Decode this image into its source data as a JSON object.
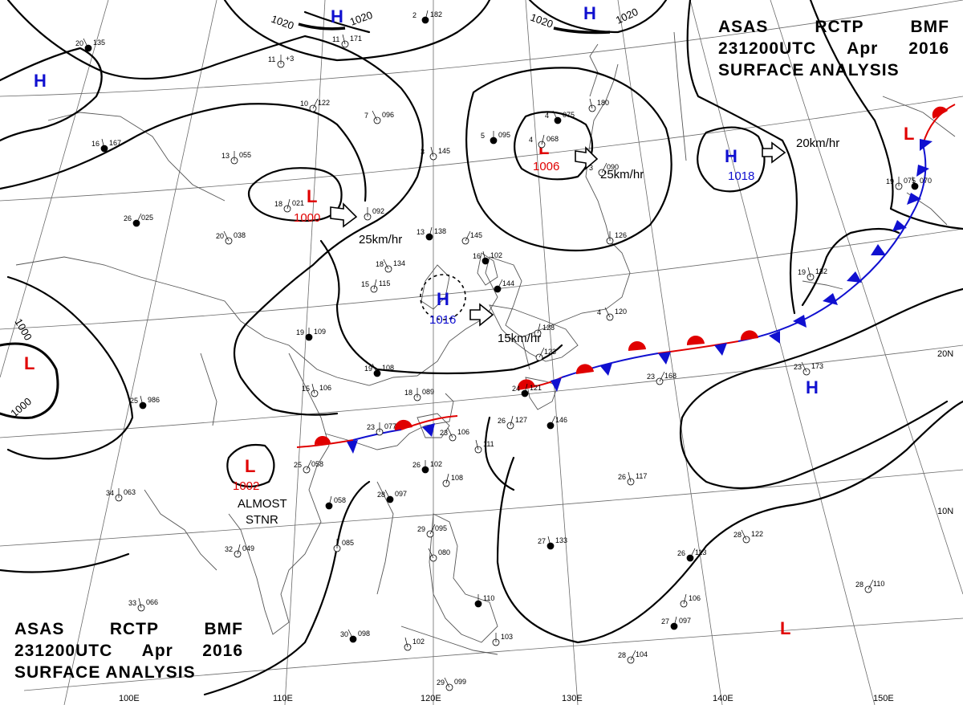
{
  "header": {
    "line1": [
      "ASAS",
      "RCTP",
      "BMF"
    ],
    "line2": [
      "231200UTC",
      "Apr",
      "2016"
    ],
    "line3": "SURFACE ANALYSIS"
  },
  "colors": {
    "high": "#1010d0",
    "low": "#e00000",
    "isobar": "#000000",
    "grid": "#555555",
    "coast": "#444444"
  },
  "pressure_centers": [
    {
      "type": "H",
      "value": "",
      "movement": ""
    },
    {
      "type": "H",
      "value": "",
      "movement": ""
    },
    {
      "type": "H",
      "value": "",
      "movement": ""
    },
    {
      "type": "L",
      "value": "1000",
      "movement": "25km/hr"
    },
    {
      "type": "L",
      "value": "1006",
      "movement": "25km/hr"
    },
    {
      "type": "H",
      "value": "1016",
      "movement": "15km/hr"
    },
    {
      "type": "H",
      "value": "1018",
      "movement": "20km/hr"
    },
    {
      "type": "L",
      "value": "",
      "movement": ""
    },
    {
      "type": "L",
      "value": "1002",
      "movement": "ALMOST STNR"
    },
    {
      "type": "H",
      "value": "",
      "movement": ""
    },
    {
      "type": "L",
      "value": "",
      "movement": ""
    },
    {
      "type": "L",
      "value": "",
      "movement": ""
    }
  ],
  "isobar_labels": [
    "1020",
    "1020",
    "1020",
    "1020",
    "1000",
    "1000"
  ],
  "almost_stnr": [
    "ALMOST",
    "STNR"
  ],
  "lat_labels": [
    "20N",
    "10N"
  ],
  "lon_labels": [
    "110E",
    "120E",
    "130E",
    "140E",
    "150E",
    "100E"
  ],
  "stations": [
    {
      "t": "20",
      "p": "135"
    },
    {
      "t": "11",
      "p": "171"
    },
    {
      "t": "11",
      "p": "+3"
    },
    {
      "t": "2",
      "p": "182"
    },
    {
      "t": "10",
      "p": "122"
    },
    {
      "t": "7",
      "p": "096"
    },
    {
      "t": "16",
      "p": "167"
    },
    {
      "t": "13",
      "p": "055"
    },
    {
      "t": "18",
      "p": "021"
    },
    {
      "t": "26",
      "p": "025"
    },
    {
      "t": "20",
      "p": "038"
    },
    {
      "t": "3",
      "p": "145"
    },
    {
      "t": "5",
      "p": "095"
    },
    {
      "t": "4",
      "p": "068"
    },
    {
      "t": "3",
      "p": "090"
    },
    {
      "t": "4",
      "p": "075"
    },
    {
      "t": "",
      "p": "180"
    },
    {
      "t": "",
      "p": "092"
    },
    {
      "t": "13",
      "p": "138"
    },
    {
      "t": "",
      "p": "145"
    },
    {
      "t": "18",
      "p": "134"
    },
    {
      "t": "16",
      "p": "102"
    },
    {
      "t": "",
      "p": "126"
    },
    {
      "t": "15",
      "p": "115"
    },
    {
      "t": "",
      "p": "144"
    },
    {
      "t": "4",
      "p": "120"
    },
    {
      "t": "19",
      "p": "132"
    },
    {
      "t": "19",
      "p": "109"
    },
    {
      "t": "",
      "p": "128"
    },
    {
      "t": "",
      "p": "123"
    },
    {
      "t": "19",
      "p": "108"
    },
    {
      "t": "15",
      "p": "106"
    },
    {
      "t": "18",
      "p": "089"
    },
    {
      "t": "24",
      "p": "121"
    },
    {
      "t": "23",
      "p": "168"
    },
    {
      "t": "23",
      "p": "173"
    },
    {
      "t": "25",
      "p": "986"
    },
    {
      "t": "23",
      "p": "077"
    },
    {
      "t": "26",
      "p": "127"
    },
    {
      "t": "",
      "p": "146"
    },
    {
      "t": "23",
      "p": "106"
    },
    {
      "t": "",
      "p": "111"
    },
    {
      "t": "26",
      "p": "102"
    },
    {
      "t": "",
      "p": "108"
    },
    {
      "t": "25",
      "p": "058"
    },
    {
      "t": "28",
      "p": "097"
    },
    {
      "t": "26",
      "p": "117"
    },
    {
      "t": "34",
      "p": "063"
    },
    {
      "t": "",
      "p": "058"
    },
    {
      "t": "29",
      "p": "095"
    },
    {
      "t": "",
      "p": "080"
    },
    {
      "t": "27",
      "p": "133"
    },
    {
      "t": "",
      "p": "085"
    },
    {
      "t": "32",
      "p": "049"
    },
    {
      "t": "26",
      "p": "113"
    },
    {
      "t": "28",
      "p": "122"
    },
    {
      "t": "33",
      "p": "066"
    },
    {
      "t": "",
      "p": "110"
    },
    {
      "t": "",
      "p": "106"
    },
    {
      "t": "28",
      "p": "110"
    },
    {
      "t": "30",
      "p": "098"
    },
    {
      "t": "",
      "p": "102"
    },
    {
      "t": "",
      "p": "103"
    },
    {
      "t": "27",
      "p": "097"
    },
    {
      "t": "28",
      "p": "104"
    },
    {
      "t": "29",
      "p": "099"
    },
    {
      "t": "",
      "p": "070"
    },
    {
      "t": "19",
      "p": "075"
    }
  ]
}
